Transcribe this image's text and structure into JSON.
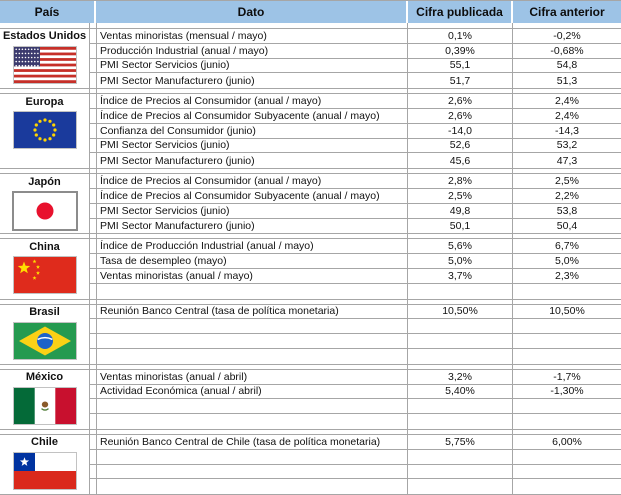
{
  "header": {
    "cols": [
      "País",
      "Dato",
      "Cifra publicada",
      "Cifra anterior"
    ]
  },
  "colors": {
    "header_bg": "#9DC3E6",
    "grid_line": "#A6A6A6",
    "text": "#111111"
  },
  "sections": [
    {
      "country": "Estados Unidos",
      "flag": "us",
      "rows": [
        {
          "dato": "Ventas minoristas (mensual / mayo)",
          "pub": "0,1%",
          "ant": "-0,2%"
        },
        {
          "dato": "Producción Industrial (anual / mayo)",
          "pub": "0,39%",
          "ant": "-0,68%"
        },
        {
          "dato": "PMI Sector Servicios (junio)",
          "pub": "55,1",
          "ant": "54,8"
        },
        {
          "dato": "PMI Sector Manufacturero (junio)",
          "pub": "51,7",
          "ant": "51,3"
        }
      ]
    },
    {
      "country": "Europa",
      "flag": "eu",
      "rows": [
        {
          "dato": "Índice de Precios al Consumidor (anual / mayo)",
          "pub": "2,6%",
          "ant": "2,4%"
        },
        {
          "dato": "Índice de Precios al Consumidor Subyacente (anual / mayo)",
          "pub": "2,6%",
          "ant": "2,4%"
        },
        {
          "dato": "Confianza del Consumidor (junio)",
          "pub": "-14,0",
          "ant": "-14,3"
        },
        {
          "dato": "PMI Sector Servicios (junio)",
          "pub": "52,6",
          "ant": "53,2"
        },
        {
          "dato": "PMI Sector Manufacturero (junio)",
          "pub": "45,6",
          "ant": "47,3"
        }
      ]
    },
    {
      "country": "Japón",
      "flag": "jp",
      "rows": [
        {
          "dato": "Índice de Precios al Consumidor (anual / mayo)",
          "pub": "2,8%",
          "ant": "2,5%"
        },
        {
          "dato": "Índice de Precios al Consumidor Subyacente (anual / mayo)",
          "pub": "2,5%",
          "ant": "2,2%"
        },
        {
          "dato": "PMI Sector Servicios (junio)",
          "pub": "49,8",
          "ant": "53,8"
        },
        {
          "dato": "PMI Sector Manufacturero (junio)",
          "pub": "50,1",
          "ant": "50,4"
        }
      ]
    },
    {
      "country": "China",
      "flag": "cn",
      "rows": [
        {
          "dato": "Índice de Producción Industrial (anual / mayo)",
          "pub": "5,6%",
          "ant": "6,7%"
        },
        {
          "dato": "Tasa de desempleo (mayo)",
          "pub": "5,0%",
          "ant": "5,0%"
        },
        {
          "dato": "Ventas minoristas (anual / mayo)",
          "pub": "3,7%",
          "ant": "2,3%"
        },
        {
          "dato": "",
          "pub": "",
          "ant": ""
        }
      ]
    },
    {
      "country": "Brasil",
      "flag": "br",
      "rows": [
        {
          "dato": "Reunión Banco Central (tasa de política monetaria)",
          "pub": "10,50%",
          "ant": "10,50%"
        },
        {
          "dato": "",
          "pub": "",
          "ant": ""
        },
        {
          "dato": "",
          "pub": "",
          "ant": ""
        },
        {
          "dato": "",
          "pub": "",
          "ant": ""
        }
      ]
    },
    {
      "country": "México",
      "flag": "mx",
      "rows": [
        {
          "dato": "Ventas minoristas (anual / abril)",
          "pub": "3,2%",
          "ant": "-1,7%"
        },
        {
          "dato": "Actividad Económica (anual / abril)",
          "pub": "5,40%",
          "ant": "-1,30%"
        },
        {
          "dato": "",
          "pub": "",
          "ant": ""
        },
        {
          "dato": "",
          "pub": "",
          "ant": ""
        }
      ]
    },
    {
      "country": "Chile",
      "flag": "cl",
      "rows": [
        {
          "dato": "Reunión Banco Central de Chile (tasa de política monetaria)",
          "pub": "5,75%",
          "ant": "6,00%"
        },
        {
          "dato": "",
          "pub": "",
          "ant": ""
        },
        {
          "dato": "",
          "pub": "",
          "ant": ""
        },
        {
          "dato": "",
          "pub": "",
          "ant": ""
        }
      ]
    }
  ]
}
